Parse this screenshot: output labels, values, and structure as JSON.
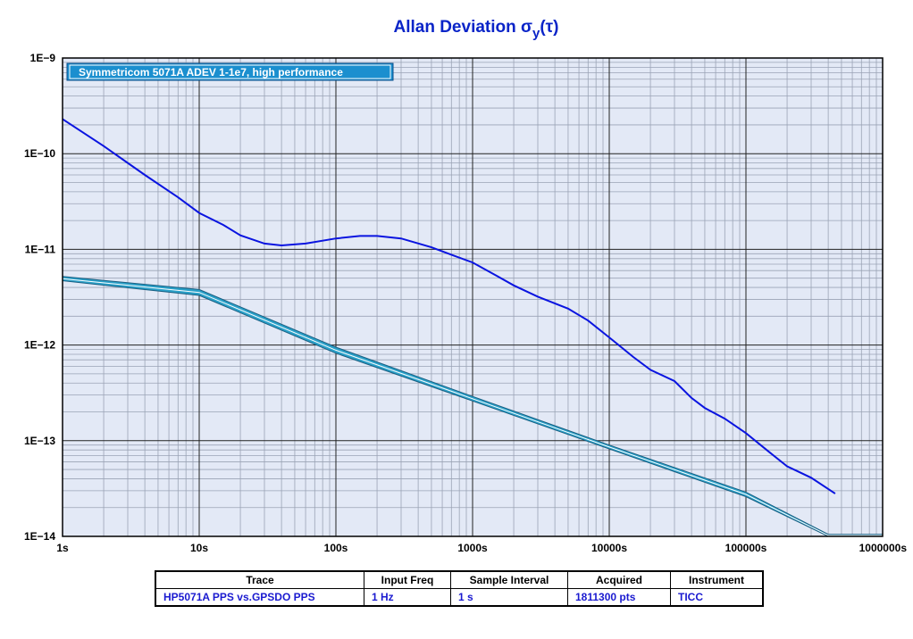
{
  "chart_data": {
    "type": "line",
    "title_main": "Allan Deviation ",
    "title_sigma": "σ",
    "title_sub": "y",
    "title_tail": "(τ)",
    "xscale": "log",
    "yscale": "log",
    "xlim": [
      1,
      1000000
    ],
    "ylim": [
      1e-14,
      1e-09
    ],
    "grid": true,
    "xticks": [
      {
        "value": 1,
        "label": "1s"
      },
      {
        "value": 10,
        "label": "10s"
      },
      {
        "value": 100,
        "label": "100s"
      },
      {
        "value": 1000,
        "label": "1000s"
      },
      {
        "value": 10000,
        "label": "10000s"
      },
      {
        "value": 100000,
        "label": "100000s"
      },
      {
        "value": 1000000,
        "label": "1000000s"
      }
    ],
    "yticks": [
      {
        "value": 1e-09,
        "label": "1E−9"
      },
      {
        "value": 1e-10,
        "label": "1E−10"
      },
      {
        "value": 1e-11,
        "label": "1E−11"
      },
      {
        "value": 1e-12,
        "label": "1E−12"
      },
      {
        "value": 1e-13,
        "label": "1E−13"
      },
      {
        "value": 1e-14,
        "label": "1E−14"
      }
    ],
    "legend_label": "Symmetricom 5071A ADEV 1-1e7, high performance",
    "legend_position": "top-left",
    "series": [
      {
        "name": "Symmetricom 5071A ADEV 1-1e7, high performance",
        "color": "#2aa0c8",
        "style": "band",
        "x": [
          1,
          10,
          100,
          1000,
          10000,
          100000,
          400000,
          1000000
        ],
        "y_upper": [
          5.2e-12,
          3.8e-12,
          9.5e-13,
          2.9e-13,
          9e-14,
          2.9e-14,
          1.05e-14,
          1.05e-14
        ],
        "y_lower": [
          4.7e-12,
          3.3e-12,
          8.2e-13,
          2.6e-13,
          8.2e-14,
          2.6e-14,
          1e-14,
          1e-14
        ]
      },
      {
        "name": "HP5071A PPS vs.GPSDO PPS",
        "color": "#0a14e0",
        "style": "line",
        "x": [
          1,
          2,
          4,
          7,
          10,
          15,
          20,
          30,
          40,
          60,
          100,
          150,
          200,
          300,
          500,
          700,
          1000,
          1500,
          2000,
          3000,
          5000,
          7000,
          10000,
          15000,
          20000,
          30000,
          40000,
          50000,
          70000,
          100000,
          150000,
          200000,
          300000,
          450000
        ],
        "y": [
          2.3e-10,
          1.2e-10,
          6e-11,
          3.5e-11,
          2.4e-11,
          1.8e-11,
          1.4e-11,
          1.15e-11,
          1.1e-11,
          1.15e-11,
          1.3e-11,
          1.38e-11,
          1.38e-11,
          1.3e-11,
          1.05e-11,
          8.8e-12,
          7.3e-12,
          5.3e-12,
          4.2e-12,
          3.2e-12,
          2.4e-12,
          1.8e-12,
          1.2e-12,
          7.5e-13,
          5.5e-13,
          4.2e-13,
          2.8e-13,
          2.2e-13,
          1.7e-13,
          1.2e-13,
          7.5e-14,
          5.4e-14,
          4.1e-14,
          2.8e-14
        ]
      }
    ]
  },
  "info_table": {
    "headers": [
      "Trace",
      "Input Freq",
      "Sample Interval",
      "Acquired",
      "Instrument"
    ],
    "row": [
      "HP5071A PPS vs.GPSDO PPS",
      "1 Hz",
      "1 s",
      "1811300 pts",
      "TICC"
    ]
  }
}
